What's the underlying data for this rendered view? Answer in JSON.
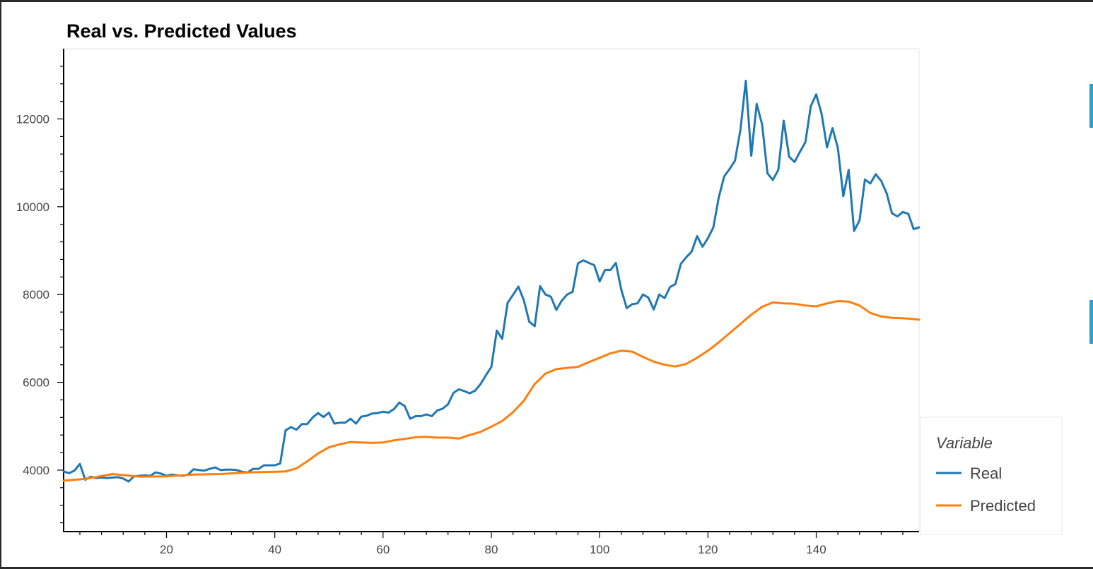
{
  "chart_data": {
    "type": "line",
    "title": "Real vs. Predicted Values",
    "xlabel": "",
    "ylabel": "",
    "xlim": [
      1,
      159
    ],
    "ylim": [
      2600,
      13600
    ],
    "x_ticks": [
      20,
      40,
      60,
      80,
      100,
      120,
      140
    ],
    "y_ticks": [
      4000,
      6000,
      8000,
      10000,
      12000
    ],
    "grid": false,
    "legend": {
      "title": "Variable",
      "placement": "right-bottom",
      "entries": [
        "Real",
        "Predicted"
      ]
    },
    "series": [
      {
        "name": "Real",
        "color": "#1f77b4",
        "x": [
          1,
          2,
          3,
          4,
          5,
          6,
          7,
          8,
          9,
          10,
          11,
          12,
          13,
          14,
          15,
          16,
          17,
          18,
          19,
          20,
          21,
          22,
          23,
          24,
          25,
          26,
          27,
          28,
          29,
          30,
          31,
          32,
          33,
          34,
          35,
          36,
          37,
          38,
          39,
          40,
          41,
          42,
          43,
          44,
          45,
          46,
          47,
          48,
          49,
          50,
          51,
          52,
          53,
          54,
          55,
          56,
          57,
          58,
          59,
          60,
          61,
          62,
          63,
          64,
          65,
          66,
          67,
          68,
          69,
          70,
          71,
          72,
          73,
          74,
          75,
          76,
          77,
          78,
          79,
          80,
          81,
          82,
          83,
          84,
          85,
          86,
          87,
          88,
          89,
          90,
          91,
          92,
          93,
          94,
          95,
          96,
          97,
          98,
          99,
          100,
          101,
          102,
          103,
          104,
          105,
          106,
          107,
          108,
          109,
          110,
          111,
          112,
          113,
          114,
          115,
          116,
          117,
          118,
          119,
          120,
          121,
          122,
          123,
          124,
          125,
          126,
          127,
          128,
          129,
          130,
          131,
          132,
          133,
          134,
          135,
          136,
          137,
          138,
          139,
          140,
          141,
          142,
          143,
          144,
          145,
          146,
          147,
          148,
          149,
          150,
          151,
          152,
          153,
          154,
          155,
          156,
          157,
          158,
          159
        ],
        "values": [
          3970,
          3930,
          3990,
          4140,
          3780,
          3850,
          3820,
          3830,
          3820,
          3830,
          3840,
          3810,
          3740,
          3860,
          3870,
          3880,
          3870,
          3950,
          3920,
          3870,
          3900,
          3880,
          3870,
          3900,
          4020,
          4000,
          3990,
          4030,
          4060,
          4000,
          4010,
          4010,
          4000,
          3960,
          3950,
          4030,
          4030,
          4110,
          4110,
          4110,
          4150,
          4910,
          4980,
          4920,
          5050,
          5050,
          5200,
          5300,
          5210,
          5310,
          5060,
          5080,
          5080,
          5170,
          5060,
          5220,
          5240,
          5290,
          5300,
          5330,
          5310,
          5390,
          5540,
          5460,
          5170,
          5230,
          5230,
          5270,
          5230,
          5360,
          5400,
          5500,
          5760,
          5840,
          5800,
          5750,
          5810,
          5960,
          6160,
          6350,
          7180,
          6990,
          7810,
          7990,
          8180,
          7870,
          7380,
          7280,
          8190,
          8000,
          7950,
          7650,
          7860,
          8000,
          8060,
          8710,
          8780,
          8720,
          8670,
          8300,
          8560,
          8560,
          8720,
          8110,
          7690,
          7780,
          7800,
          8000,
          7930,
          7660,
          8000,
          7920,
          8170,
          8240,
          8700,
          8850,
          8980,
          9330,
          9090,
          9280,
          9530,
          10210,
          10690,
          10860,
          11050,
          11750,
          12870,
          11160,
          12340,
          11880,
          10760,
          10610,
          10840,
          11960,
          11140,
          11020,
          11250,
          11470,
          12290,
          12560,
          12110,
          11350,
          11790,
          11340,
          10240,
          10840,
          9450,
          9690,
          10620,
          10530,
          10740,
          10590,
          10310,
          9850,
          9780,
          9880,
          9840,
          9490,
          9530
        ]
      },
      {
        "name": "Predicted",
        "color": "#ff7f0e",
        "x": [
          1,
          5,
          10,
          15,
          20,
          25,
          30,
          35,
          40,
          42,
          44,
          46,
          48,
          50,
          52,
          54,
          56,
          58,
          60,
          62,
          64,
          66,
          68,
          70,
          72,
          74,
          76,
          78,
          80,
          82,
          84,
          86,
          88,
          90,
          92,
          94,
          96,
          98,
          100,
          102,
          104,
          106,
          108,
          110,
          112,
          114,
          116,
          118,
          120,
          122,
          124,
          126,
          128,
          130,
          132,
          134,
          136,
          138,
          140,
          142,
          144,
          146,
          148,
          150,
          152,
          154,
          156,
          158,
          159
        ],
        "values": [
          3760,
          3800,
          3910,
          3850,
          3860,
          3900,
          3910,
          3950,
          3960,
          3970,
          4040,
          4200,
          4380,
          4520,
          4590,
          4640,
          4630,
          4620,
          4630,
          4680,
          4710,
          4750,
          4760,
          4740,
          4740,
          4720,
          4800,
          4870,
          4990,
          5120,
          5320,
          5580,
          5960,
          6200,
          6300,
          6330,
          6350,
          6460,
          6560,
          6660,
          6720,
          6700,
          6580,
          6470,
          6400,
          6360,
          6420,
          6560,
          6720,
          6910,
          7120,
          7330,
          7540,
          7720,
          7820,
          7800,
          7790,
          7750,
          7730,
          7800,
          7850,
          7840,
          7750,
          7580,
          7500,
          7470,
          7460,
          7440,
          7430
        ]
      }
    ]
  }
}
